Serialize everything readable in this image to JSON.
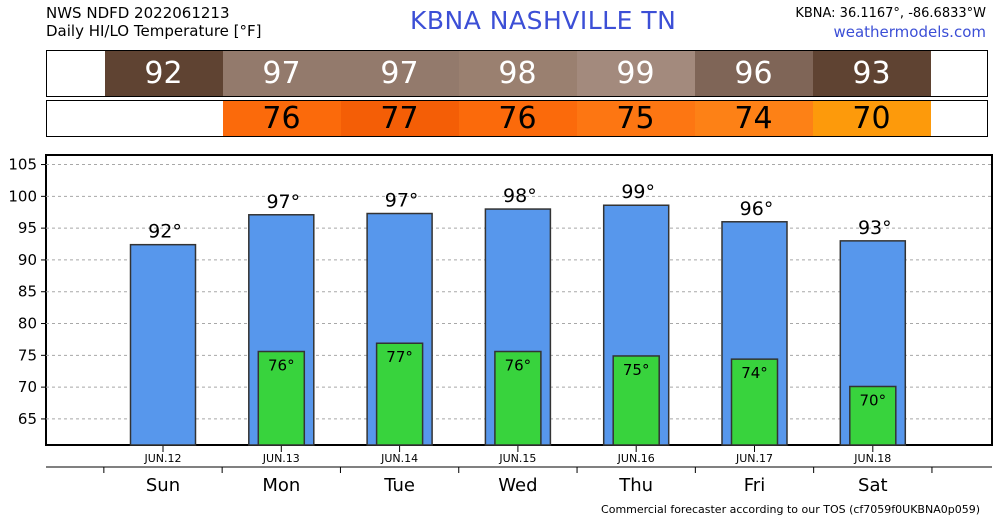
{
  "header": {
    "line1": "NWS NDFD 2022061213",
    "line2": "Daily HI/LO Temperature [°F]",
    "station": "KBNA   NASHVILLE      TN",
    "coords": "KBNA: 36.1167°, -86.6833°W",
    "site": "weathermodels.com"
  },
  "hi_row": [
    {
      "text": "92",
      "color": "#5f4332",
      "text_color": "#ffffff"
    },
    {
      "text": "97",
      "color": "#937a6c",
      "text_color": "#ffffff"
    },
    {
      "text": "97",
      "color": "#937a6c",
      "text_color": "#ffffff"
    },
    {
      "text": "98",
      "color": "#9a8070",
      "text_color": "#ffffff"
    },
    {
      "text": "99",
      "color": "#a38a7d",
      "text_color": "#ffffff"
    },
    {
      "text": "96",
      "color": "#7f6557",
      "text_color": "#ffffff"
    },
    {
      "text": "93",
      "color": "#5f4332",
      "text_color": "#ffffff"
    }
  ],
  "lo_row": [
    {
      "text": "76",
      "color": "#fb6a0b",
      "text_color": "#000000"
    },
    {
      "text": "77",
      "color": "#f45e06",
      "text_color": "#000000"
    },
    {
      "text": "76",
      "color": "#fb6a0b",
      "text_color": "#000000"
    },
    {
      "text": "75",
      "color": "#fd7612",
      "text_color": "#000000"
    },
    {
      "text": "74",
      "color": "#fd8116",
      "text_color": "#000000"
    },
    {
      "text": "70",
      "color": "#fd9a0b",
      "text_color": "#000000"
    }
  ],
  "chart_data": {
    "type": "bar",
    "categories": [
      "JUN.12",
      "JUN.13",
      "JUN.14",
      "JUN.15",
      "JUN.16",
      "JUN.17",
      "JUN.18"
    ],
    "days": [
      "Sun",
      "Mon",
      "Tue",
      "Wed",
      "Thu",
      "Fri",
      "Sat"
    ],
    "series": [
      {
        "values": [
          92.4,
          97.1,
          97.3,
          98.0,
          98.6,
          96.0,
          93.0
        ],
        "color": "#5797ec"
      },
      {
        "values": [
          null,
          75.6,
          76.9,
          75.6,
          74.9,
          74.4,
          70.1
        ],
        "color": "#38d33d"
      }
    ],
    "hi_labels": [
      "92°",
      "97°",
      "97°",
      "98°",
      "99°",
      "96°",
      "93°"
    ],
    "lo_labels": [
      "",
      "76°",
      "77°",
      "76°",
      "75°",
      "74°",
      "70°"
    ],
    "yticks": [
      65,
      70,
      75,
      80,
      85,
      90,
      95,
      100,
      105
    ],
    "ylim": [
      60.9,
      106.5
    ],
    "grid": true
  },
  "footer": "Commercial forecaster according to our TOS (cf7059f0UKBNA0p059)"
}
